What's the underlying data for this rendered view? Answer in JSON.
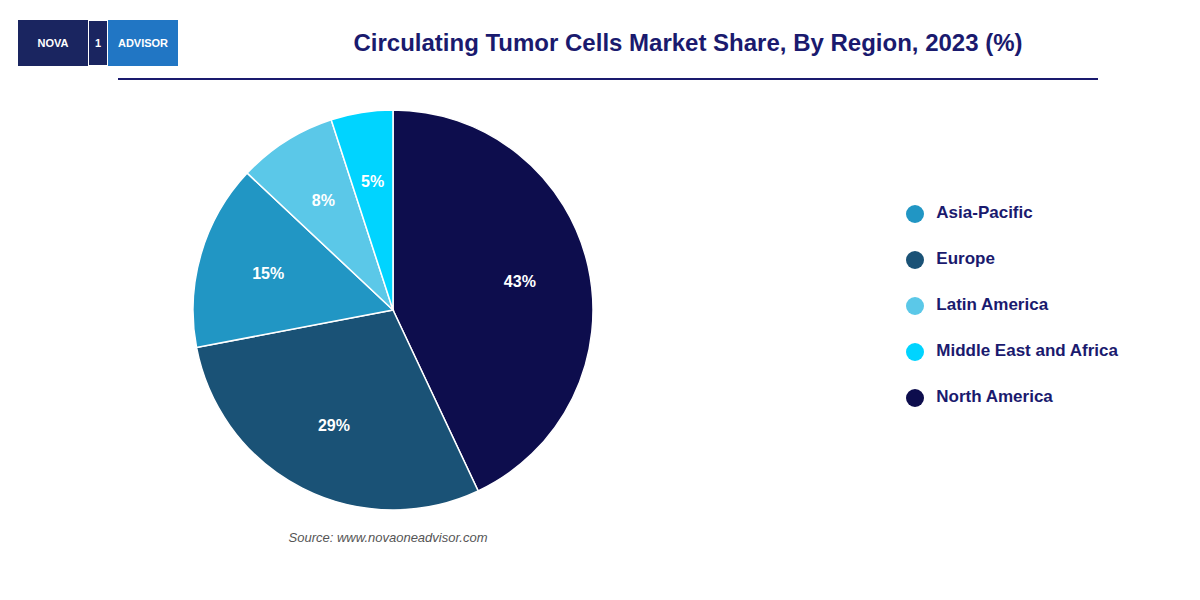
{
  "chart_data": {
    "type": "pie",
    "title": "Circulating Tumor Cells Market Share, By Region, 2023 (%)",
    "categories": [
      "North America",
      "Europe",
      "Asia-Pacific",
      "Latin America",
      "Middle East and Africa"
    ],
    "values": [
      43,
      29,
      15,
      8,
      5
    ],
    "value_labels": [
      "43%",
      "29%",
      "15%",
      "8%",
      "5%"
    ],
    "colors": [
      "#0d0d4d",
      "#1a5276",
      "#2196c4",
      "#5bc8e8",
      "#00d4ff"
    ],
    "data_labels": true,
    "legend": "right",
    "annotations": [
      "NOVA",
      "1",
      "ADVISOR",
      "Source: www.novaoneadvisor.com"
    ]
  }
}
